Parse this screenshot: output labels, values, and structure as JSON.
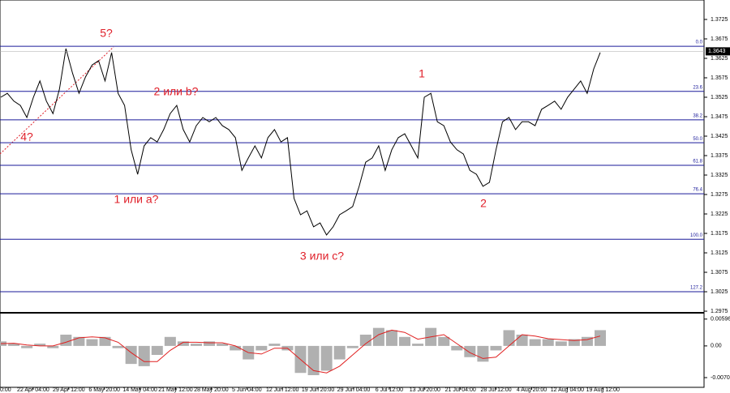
{
  "chart_data": {
    "type": "line",
    "price": {
      "values": [
        1.3525,
        1.3535,
        1.3515,
        1.3504,
        1.3473,
        1.3525,
        1.3567,
        1.3515,
        1.3483,
        1.3546,
        1.365,
        1.3587,
        1.3535,
        1.3577,
        1.3608,
        1.3619,
        1.3567,
        1.364,
        1.3535,
        1.3504,
        1.339,
        1.3327,
        1.34,
        1.3421,
        1.341,
        1.3442,
        1.3483,
        1.3504,
        1.3442,
        1.341,
        1.3452,
        1.3473,
        1.3462,
        1.3473,
        1.3452,
        1.3442,
        1.3421,
        1.3337,
        1.3369,
        1.34,
        1.3369,
        1.3421,
        1.3442,
        1.341,
        1.3421,
        1.3265,
        1.3223,
        1.3233,
        1.3192,
        1.3202,
        1.3171,
        1.3192,
        1.3223,
        1.3233,
        1.3244,
        1.3296,
        1.3358,
        1.3369,
        1.34,
        1.3337,
        1.339,
        1.3421,
        1.3431,
        1.34,
        1.3369,
        1.3525,
        1.3535,
        1.3462,
        1.3452,
        1.341,
        1.339,
        1.3379,
        1.3337,
        1.3327,
        1.3296,
        1.3306,
        1.339,
        1.3462,
        1.3473,
        1.3442,
        1.3462,
        1.3462,
        1.3452,
        1.3494,
        1.3504,
        1.3515,
        1.3494,
        1.3525,
        1.3546,
        1.3567,
        1.3535,
        1.3598,
        1.364
      ],
      "color": "#000000",
      "ylim": [
        1.2973,
        1.3775
      ],
      "yticks": [
        1.3725,
        1.3675,
        1.3625,
        1.3575,
        1.3525,
        1.3475,
        1.3425,
        1.3375,
        1.3325,
        1.3275,
        1.3225,
        1.3175,
        1.3125,
        1.3075,
        1.3025,
        1.2975
      ],
      "current_price": 1.3643,
      "fib_levels": [
        {
          "label": "0.0",
          "value": 1.3656
        },
        {
          "label": "23.6",
          "value": 1.354
        },
        {
          "label": "38.2",
          "value": 1.3467
        },
        {
          "label": "50.0",
          "value": 1.3408
        },
        {
          "label": "61.8",
          "value": 1.335
        },
        {
          "label": "76.4",
          "value": 1.3277
        },
        {
          "label": "100.0",
          "value": 1.316
        },
        {
          "label": "127.2",
          "value": 1.3025
        }
      ],
      "fib_color": "#1a1a9a",
      "annotations": [
        "?",
        "5?",
        "4?",
        "2 или b?",
        "1 или a?",
        "3 или c?",
        "1",
        "2"
      ]
    },
    "indicator": {
      "histogram": {
        "color": "#b0b0b0",
        "values": [
          0.001,
          0.0005,
          -0.0005,
          0.0005,
          -0.0005,
          0.0025,
          0.002,
          0.0015,
          0.002,
          -0.0005,
          -0.004,
          -0.0045,
          -0.002,
          0.002,
          0.001,
          0.0005,
          0.001,
          0.0005,
          -0.001,
          -0.003,
          -0.001,
          0.0005,
          -0.001,
          -0.006,
          -0.0065,
          -0.0055,
          -0.003,
          -0.0005,
          0.0025,
          0.004,
          0.0035,
          0.002,
          0.0005,
          0.004,
          0.002,
          -0.001,
          -0.0025,
          -0.0035,
          -0.001,
          0.0035,
          0.0025,
          0.0015,
          0.0015,
          0.001,
          0.0015,
          0.002,
          0.0035
        ]
      },
      "signal": {
        "color": "#e02020",
        "values": [
          0.0005,
          0.0006,
          0.0002,
          0,
          0,
          0.0008,
          0.0018,
          0.002,
          0.0018,
          0.0008,
          -0.0015,
          -0.0035,
          -0.0035,
          -0.001,
          0.0008,
          0.0008,
          0.0007,
          0.0007,
          0,
          -0.0015,
          -0.0018,
          -0.0005,
          -0.0005,
          -0.003,
          -0.0055,
          -0.006,
          -0.0045,
          -0.002,
          0.0005,
          0.0025,
          0.0035,
          0.003,
          0.0015,
          0.002,
          0.0025,
          0.0005,
          -0.0015,
          -0.0028,
          -0.0025,
          0,
          0.0025,
          0.0022,
          0.0016,
          0.0014,
          0.0012,
          0.0014,
          0.0022
        ]
      },
      "ylim": [
        -0.0092,
        0.007
      ],
      "yticks": [
        0.00596,
        {
          "value": 0,
          "label": "0.00"
        },
        -0.00704
      ]
    },
    "xlabels": [
      "0:00",
      "22 Apr 04:00",
      "29 Apr 12:00",
      "6 May 20:00",
      "14 May 04:00",
      "21 May 12:00",
      "28 May 20:00",
      "5 Jun 04:00",
      "12 Jun 12:00",
      "19 Jun 20:00",
      "29 Jun 04:00",
      "6 Jul 12:00",
      "13 Jul 20:00",
      "21 Jul 04:00",
      "28 Jul 12:00",
      "4 Aug 20:00",
      "12 Aug 04:00",
      "19 Aug 12:00"
    ]
  }
}
